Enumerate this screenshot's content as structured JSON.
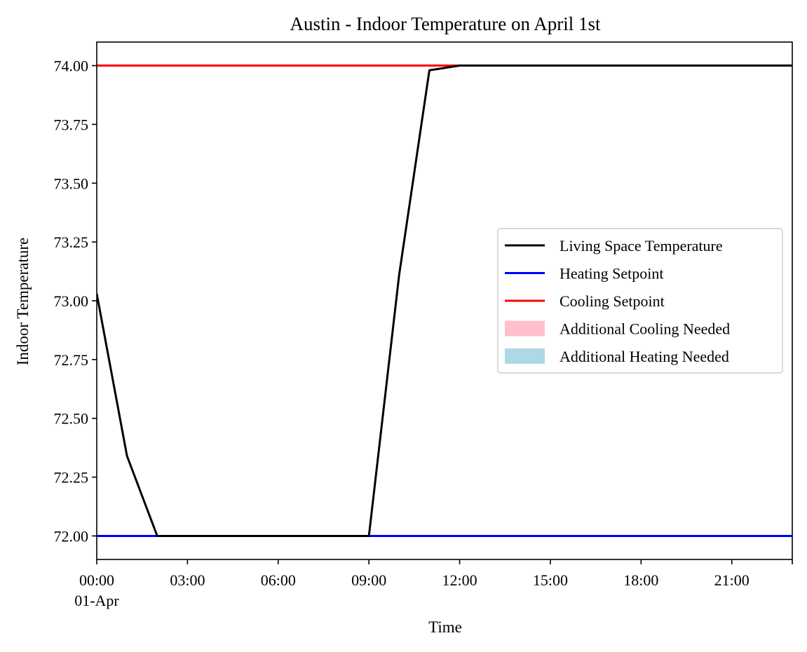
{
  "chart_data": {
    "type": "line",
    "title": "Austin - Indoor Temperature on April 1st",
    "xlabel": "Time",
    "ylabel": "Indoor Temperature",
    "xlim": [
      0,
      23
    ],
    "ylim": [
      71.9,
      74.1
    ],
    "x_ticks": [
      0,
      3,
      6,
      9,
      12,
      15,
      18,
      21
    ],
    "x_tick_labels": [
      "00:00",
      "03:00",
      "06:00",
      "09:00",
      "12:00",
      "15:00",
      "18:00",
      "21:00"
    ],
    "x_date_label": "01-Apr",
    "y_ticks": [
      72.0,
      72.25,
      72.5,
      72.75,
      73.0,
      73.25,
      73.5,
      73.75,
      74.0
    ],
    "y_tick_labels": [
      "72.00",
      "72.25",
      "72.50",
      "72.75",
      "73.00",
      "73.25",
      "73.50",
      "73.75",
      "74.00"
    ],
    "grid": false,
    "legend_position": "center-right",
    "series": [
      {
        "name": "Living Space Temperature",
        "color": "#000000",
        "x": [
          0,
          1,
          2,
          3,
          4,
          5,
          6,
          7,
          8,
          9,
          10,
          11,
          12,
          13,
          14,
          15,
          16,
          17,
          18,
          19,
          20,
          21,
          22,
          23
        ],
        "y": [
          73.03,
          72.34,
          72.0,
          72.0,
          72.0,
          72.0,
          72.0,
          72.0,
          72.0,
          72.0,
          73.11,
          73.98,
          74.0,
          74.0,
          74.0,
          74.0,
          74.0,
          74.0,
          74.0,
          74.0,
          74.0,
          74.0,
          74.0,
          74.0
        ]
      },
      {
        "name": "Heating Setpoint",
        "color": "#0000ff",
        "x": [
          0,
          23
        ],
        "y": [
          72.0,
          72.0
        ]
      },
      {
        "name": "Cooling Setpoint",
        "color": "#ff0000",
        "x": [
          0,
          23
        ],
        "y": [
          74.0,
          74.0
        ]
      }
    ],
    "fills": [
      {
        "name": "Additional Cooling Needed",
        "color": "#ffc0cb"
      },
      {
        "name": "Additional Heating Needed",
        "color": "#add8e6"
      }
    ]
  }
}
